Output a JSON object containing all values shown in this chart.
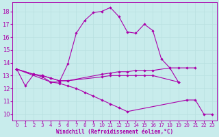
{
  "xlabel": "Windchill (Refroidissement éolien,°C)",
  "bg_color": "#c8ecec",
  "line_color": "#aa00aa",
  "grid_color": "#b8e0e0",
  "ylim": [
    9.5,
    18.7
  ],
  "xlim": [
    -0.5,
    23.5
  ],
  "yticks": [
    10,
    11,
    12,
    13,
    14,
    15,
    16,
    17,
    18
  ],
  "xticks": [
    0,
    1,
    2,
    3,
    4,
    5,
    6,
    7,
    8,
    9,
    10,
    11,
    12,
    13,
    14,
    15,
    16,
    17,
    18,
    19,
    20,
    21,
    22,
    23
  ],
  "lines": [
    {
      "comment": "main arc line peaking around x=11-12",
      "x": [
        0,
        1,
        2,
        3,
        4,
        5,
        6,
        7,
        8,
        9,
        10,
        11,
        12,
        13,
        14,
        15,
        16,
        17,
        18,
        19
      ],
      "y": [
        13.5,
        12.2,
        13.1,
        12.9,
        12.5,
        12.5,
        13.9,
        16.3,
        17.3,
        17.9,
        18.0,
        18.3,
        17.6,
        16.4,
        16.3,
        17.0,
        16.5,
        14.3,
        13.6,
        12.5
      ]
    },
    {
      "comment": "upper flat line going from ~0 to ~21 around y=13.3-13.6",
      "x": [
        0,
        2,
        3,
        4,
        5,
        6,
        10,
        11,
        12,
        13,
        14,
        15,
        16,
        18,
        19,
        20,
        21
      ],
      "y": [
        13.5,
        13.1,
        13.0,
        12.8,
        12.6,
        12.6,
        13.1,
        13.2,
        13.3,
        13.3,
        13.4,
        13.4,
        13.4,
        13.6,
        13.6,
        13.6,
        13.6
      ]
    },
    {
      "comment": "lower flat line going from ~0 to ~19 around y=12.8-13.0",
      "x": [
        0,
        2,
        3,
        4,
        5,
        6,
        10,
        11,
        12,
        13,
        14,
        15,
        16,
        19
      ],
      "y": [
        13.5,
        13.1,
        13.0,
        12.8,
        12.6,
        12.6,
        12.9,
        13.0,
        13.0,
        13.0,
        13.0,
        13.0,
        13.0,
        12.5
      ]
    },
    {
      "comment": "diagonal descending line from ~x=0 to x=23",
      "x": [
        0,
        4,
        5,
        6,
        7,
        8,
        9,
        10,
        11,
        12,
        13,
        20,
        21,
        22,
        23
      ],
      "y": [
        13.5,
        12.5,
        12.4,
        12.2,
        12.0,
        11.7,
        11.4,
        11.1,
        10.8,
        10.5,
        10.2,
        11.1,
        11.1,
        10.0,
        10.0
      ]
    }
  ]
}
